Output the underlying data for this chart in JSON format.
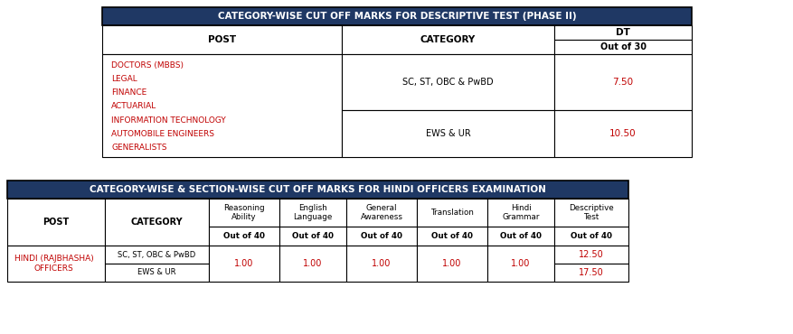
{
  "table1_title": "CATEGORY-WISE CUT OFF MARKS FOR DESCRIPTIVE TEST (PHASE II)",
  "table1_posts": [
    "DOCTORS (MBBS)",
    "LEGAL",
    "FINANCE",
    "ACTUARIAL",
    "INFORMATION TECHNOLOGY",
    "AUTOMOBILE ENGINEERS",
    "GENERALISTS"
  ],
  "table1_cat1": "SC, ST, OBC & PwBD",
  "table1_cat2": "EWS & UR",
  "table1_val1": "7.50",
  "table1_val2": "10.50",
  "table2_title": "CATEGORY-WISE & SECTION-WISE CUT OFF MARKS FOR HINDI OFFICERS EXAMINATION",
  "table2_post": "HINDI (RAJBHASHA)\nOFFICERS",
  "table2_cat1": "SC, ST, OBC & PwBD",
  "table2_cat2": "EWS & UR",
  "table2_shared_val": "1.00",
  "table2_desc1": "12.50",
  "table2_desc2": "17.50",
  "header_bg": "#1F3864",
  "header_text": "#FFFFFF",
  "post_text_color": "#C00000",
  "value_text_color": "#C00000",
  "border_color": "#000000",
  "bg_color": "#FFFFFF"
}
